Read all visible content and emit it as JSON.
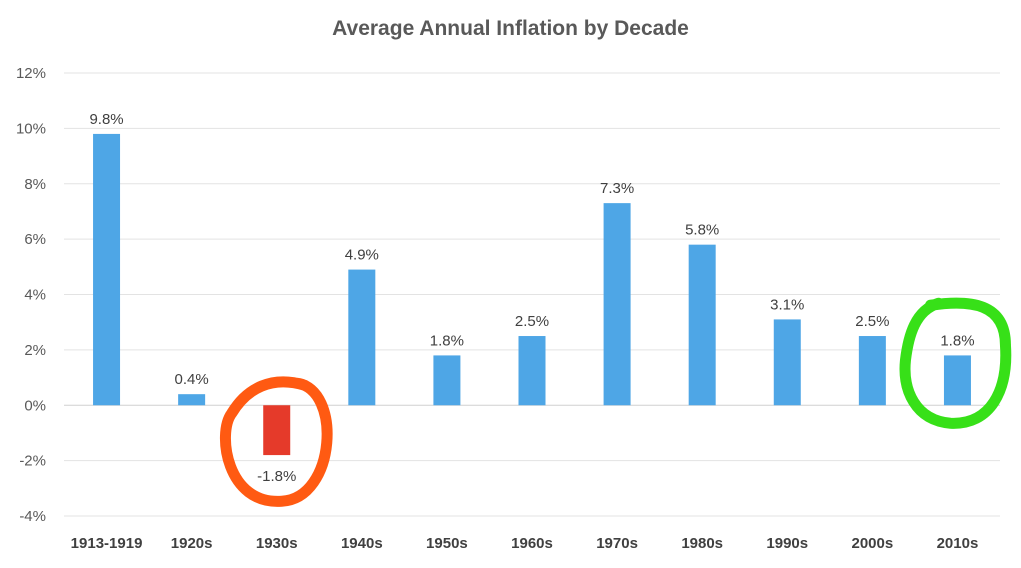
{
  "chart_data": {
    "type": "bar",
    "title": "Average Annual Inflation by Decade",
    "xlabel": "",
    "ylabel": "",
    "categories": [
      "1913-1919",
      "1920s",
      "1930s",
      "1940s",
      "1950s",
      "1960s",
      "1970s",
      "1980s",
      "1990s",
      "2000s",
      "2010s"
    ],
    "values": [
      9.8,
      0.4,
      -1.8,
      4.9,
      1.8,
      2.5,
      7.3,
      5.8,
      3.1,
      2.5,
      1.8
    ],
    "data_labels": [
      "9.8%",
      "0.4%",
      "-1.8%",
      "4.9%",
      "1.8%",
      "2.5%",
      "7.3%",
      "5.8%",
      "3.1%",
      "2.5%",
      "1.8%"
    ],
    "ylim": [
      -4,
      12
    ],
    "yticks": [
      {
        "value": 12,
        "label": "12%"
      },
      {
        "value": 10,
        "label": "10%"
      },
      {
        "value": 8,
        "label": "8%"
      },
      {
        "value": 6,
        "label": "6%"
      },
      {
        "value": 4,
        "label": "4%"
      },
      {
        "value": 2,
        "label": "2%"
      },
      {
        "value": 0,
        "label": "0%"
      },
      {
        "value": -2,
        "label": "-2%"
      },
      {
        "value": -4,
        "label": "-4%"
      }
    ],
    "grid": true,
    "legend": "none",
    "colors": {
      "bar": "#4ea6e6",
      "negative_bar": "#e53a2a"
    },
    "annotations": [
      {
        "type": "hand-drawn-circle",
        "target_category": "1930s",
        "color": "#ff5a12"
      },
      {
        "type": "hand-drawn-circle",
        "target_category": "2010s",
        "color": "#37e018"
      }
    ]
  }
}
